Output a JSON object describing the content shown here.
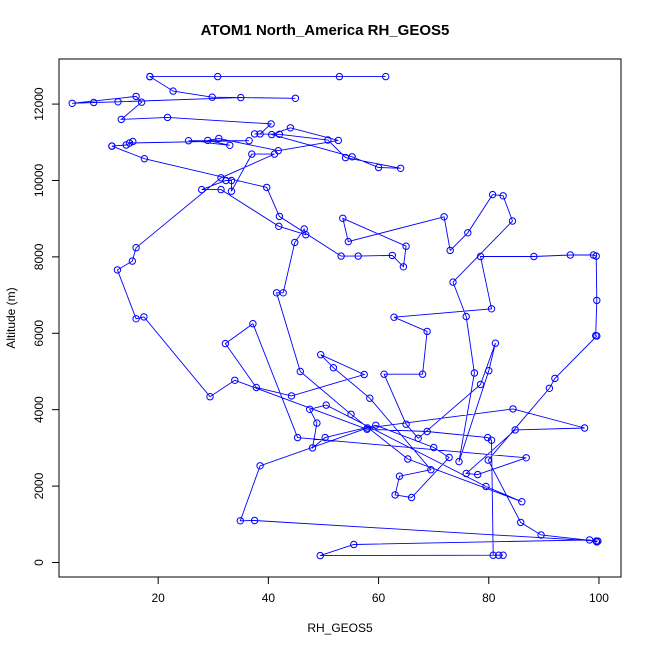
{
  "chart_data": {
    "type": "line",
    "title": "ATOM1 North_America RH_GEOS5",
    "xlabel": "RH_GEOS5",
    "ylabel": "Altitude (m)",
    "xlim": [
      2,
      104
    ],
    "ylim": [
      -380,
      13180
    ],
    "x_ticks": [
      20,
      40,
      60,
      80,
      100
    ],
    "y_ticks": [
      0,
      2000,
      4000,
      6000,
      8000,
      10000,
      12000
    ],
    "grid": false,
    "series_color": "#0000ff",
    "series": [
      {
        "points": [
          [
            18.5,
            12720
          ],
          [
            30.8,
            12720
          ],
          [
            52.9,
            12720
          ],
          [
            61.3,
            12720
          ],
          [
            18.5,
            12720
          ],
          [
            22.7,
            12340
          ],
          [
            29.8,
            12180
          ],
          [
            44.9,
            12150
          ],
          [
            35.0,
            12170
          ],
          [
            12.7,
            12060
          ],
          [
            8.3,
            12040
          ],
          [
            4.4,
            12020
          ],
          [
            16.0,
            12200
          ],
          [
            17.0,
            12050
          ],
          [
            13.3,
            11600
          ],
          [
            21.7,
            11650
          ],
          [
            40.5,
            11480
          ],
          [
            38.5,
            11220
          ],
          [
            37.5,
            11220
          ],
          [
            42.0,
            11210
          ],
          [
            50.8,
            11060
          ],
          [
            54.0,
            10600
          ],
          [
            64.0,
            10320
          ],
          [
            60.0,
            10340
          ],
          [
            55.2,
            10620
          ],
          [
            40.6,
            11200
          ],
          [
            44.0,
            11380
          ],
          [
            52.7,
            11050
          ],
          [
            41.8,
            10780
          ],
          [
            31.0,
            11100
          ],
          [
            29.0,
            11050
          ],
          [
            33.0,
            10920
          ],
          [
            25.5,
            11040
          ],
          [
            36.5,
            11040
          ],
          [
            14.8,
            10980
          ],
          [
            15.4,
            11020
          ],
          [
            14.2,
            10930
          ],
          [
            11.6,
            10900
          ],
          [
            11.6,
            10900
          ],
          [
            17.5,
            10570
          ],
          [
            39.7,
            9820
          ],
          [
            42.0,
            9060
          ],
          [
            53.2,
            8020
          ],
          [
            56.3,
            8020
          ],
          [
            62.5,
            8040
          ],
          [
            64.5,
            7740
          ],
          [
            65.0,
            8280
          ],
          [
            53.5,
            9010
          ],
          [
            54.5,
            8400
          ],
          [
            71.9,
            9050
          ],
          [
            73.0,
            8170
          ],
          [
            76.2,
            8630
          ],
          [
            80.7,
            9630
          ],
          [
            82.6,
            9600
          ],
          [
            84.3,
            8940
          ],
          [
            73.5,
            7340
          ],
          [
            75.9,
            6440
          ],
          [
            77.4,
            4960
          ],
          [
            74.6,
            2640
          ],
          [
            80.0,
            5020
          ],
          [
            81.2,
            5740
          ],
          [
            78.5,
            4660
          ],
          [
            67.2,
            3250
          ],
          [
            65.0,
            3620
          ],
          [
            61.0,
            4930
          ],
          [
            68.0,
            4930
          ],
          [
            68.8,
            6050
          ],
          [
            62.8,
            6420
          ],
          [
            80.5,
            6640
          ],
          [
            78.5,
            8010
          ],
          [
            88.2,
            8010
          ],
          [
            94.8,
            8050
          ],
          [
            99.0,
            8050
          ],
          [
            99.5,
            8020
          ],
          [
            99.6,
            6860
          ],
          [
            99.4,
            5940
          ],
          [
            99.6,
            5930
          ],
          [
            92.0,
            4820
          ],
          [
            91.0,
            4560
          ],
          [
            79.9,
            2680
          ],
          [
            85.8,
            1050
          ],
          [
            89.5,
            720
          ],
          [
            99.5,
            560
          ],
          [
            99.8,
            560
          ],
          [
            37.5,
            1100
          ],
          [
            34.9,
            1090
          ],
          [
            38.5,
            2530
          ],
          [
            58.0,
            3520
          ],
          [
            84.4,
            4020
          ],
          [
            97.4,
            3520
          ],
          [
            84.8,
            3470
          ],
          [
            75.9,
            2330
          ],
          [
            78.0,
            2300
          ],
          [
            86.8,
            2740
          ],
          [
            45.3,
            3270
          ],
          [
            37.2,
            6250
          ],
          [
            32.2,
            5730
          ],
          [
            37.8,
            4580
          ],
          [
            44.2,
            4360
          ],
          [
            57.4,
            4920
          ],
          [
            49.5,
            5440
          ],
          [
            51.8,
            5100
          ],
          [
            58.4,
            4300
          ],
          [
            69.5,
            2430
          ],
          [
            63.8,
            2260
          ],
          [
            63.0,
            1770
          ],
          [
            66.0,
            1700
          ],
          [
            72.8,
            2750
          ],
          [
            70.0,
            3010
          ],
          [
            59.5,
            3590
          ],
          [
            50.3,
            3270
          ],
          [
            48.0,
            3000
          ],
          [
            48.8,
            3650
          ],
          [
            47.5,
            4010
          ],
          [
            50.5,
            4120
          ],
          [
            79.5,
            1990
          ],
          [
            86.0,
            1590
          ],
          [
            65.3,
            2710
          ],
          [
            55.0,
            3880
          ],
          [
            45.8,
            5000
          ],
          [
            41.5,
            7060
          ],
          [
            42.7,
            7060
          ],
          [
            44.8,
            8380
          ],
          [
            46.5,
            8730
          ],
          [
            46.8,
            8580
          ],
          [
            41.9,
            8800
          ],
          [
            31.4,
            9760
          ],
          [
            27.9,
            9760
          ],
          [
            32.3,
            10000
          ],
          [
            33.3,
            10000
          ],
          [
            33.3,
            9720
          ],
          [
            37.0,
            10690
          ],
          [
            41.1,
            10690
          ],
          [
            31.4,
            10070
          ],
          [
            16.0,
            8240
          ],
          [
            15.3,
            7890
          ],
          [
            12.6,
            7660
          ],
          [
            16.0,
            6380
          ],
          [
            17.4,
            6430
          ],
          [
            29.4,
            4340
          ],
          [
            33.9,
            4770
          ],
          [
            57.9,
            3490
          ],
          [
            68.8,
            3430
          ],
          [
            79.8,
            3270
          ],
          [
            80.5,
            3200
          ],
          [
            80.8,
            190
          ],
          [
            81.8,
            190
          ],
          [
            82.6,
            190
          ],
          [
            49.4,
            180
          ],
          [
            55.5,
            470
          ],
          [
            98.3,
            590
          ],
          [
            99.6,
            540
          ]
        ]
      }
    ]
  }
}
